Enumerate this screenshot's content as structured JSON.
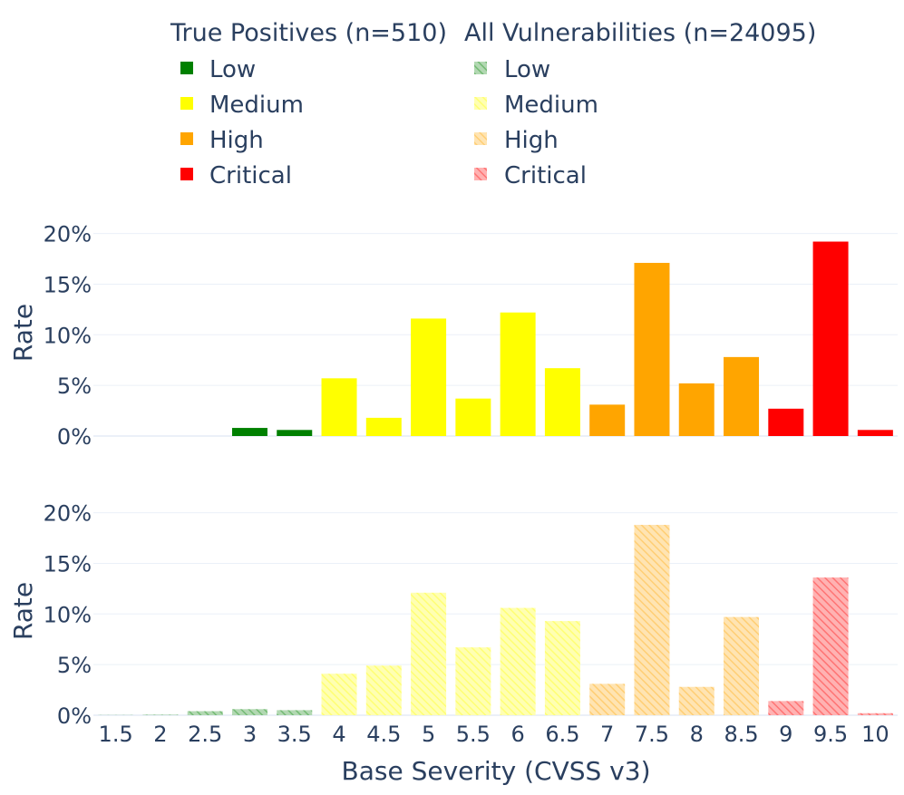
{
  "chart_data": {
    "type": "bar",
    "legend": {
      "groups": [
        {
          "title": "True Positives (n=510)",
          "items": [
            "Low",
            "Medium",
            "High",
            "Critical"
          ],
          "style": "solid"
        },
        {
          "title": "All Vulnerabilities (n=24095)",
          "items": [
            "Low",
            "Medium",
            "High",
            "Critical"
          ],
          "style": "hatched"
        }
      ],
      "placement": "top"
    },
    "colors": {
      "Low": "#008000",
      "Medium": "#ffff00",
      "High": "#ffa500",
      "Critical": "#ff0000"
    },
    "xlabel": "Base Severity (CVSS v3)",
    "x_ticks": [
      "1.5",
      "2",
      "2.5",
      "3",
      "3.5",
      "4",
      "4.5",
      "5",
      "5.5",
      "6",
      "6.5",
      "7",
      "7.5",
      "8",
      "8.5",
      "9",
      "9.5",
      "10"
    ],
    "y_ticks": [
      "0%",
      "5%",
      "10%",
      "15%",
      "20%"
    ],
    "panels": [
      {
        "name": "True Positives (n=510)",
        "ylabel": "Rate",
        "ylim": [
          0,
          20.5
        ],
        "style": "solid",
        "x": [
          1.5,
          2,
          2.5,
          3,
          3.5,
          4,
          4.5,
          5,
          5.5,
          6,
          6.5,
          7,
          7.5,
          8,
          8.5,
          9,
          9.5,
          10
        ],
        "values": [
          0,
          0,
          0,
          0.8,
          0.6,
          5.7,
          1.8,
          11.6,
          3.7,
          12.2,
          6.7,
          3.1,
          17.1,
          5.2,
          7.8,
          2.7,
          19.2,
          0.6
        ],
        "severity": [
          "Low",
          "Low",
          "Low",
          "Low",
          "Low",
          "Medium",
          "Medium",
          "Medium",
          "Medium",
          "Medium",
          "Medium",
          "High",
          "High",
          "High",
          "High",
          "Critical",
          "Critical",
          "Critical"
        ]
      },
      {
        "name": "All Vulnerabilities (n=24095)",
        "ylabel": "Rate",
        "ylim": [
          0,
          20.5
        ],
        "style": "hatched",
        "x": [
          1.5,
          2,
          2.5,
          3,
          3.5,
          4,
          4.5,
          5,
          5.5,
          6,
          6.5,
          7,
          7.5,
          8,
          8.5,
          9,
          9.5,
          10
        ],
        "values": [
          0.02,
          0.05,
          0.4,
          0.6,
          0.5,
          4.1,
          4.9,
          12.1,
          6.7,
          10.6,
          9.3,
          3.1,
          18.8,
          2.8,
          9.7,
          1.4,
          13.6,
          0.2
        ],
        "severity": [
          "Low",
          "Low",
          "Low",
          "Low",
          "Low",
          "Medium",
          "Medium",
          "Medium",
          "Medium",
          "Medium",
          "Medium",
          "High",
          "High",
          "High",
          "High",
          "Critical",
          "Critical",
          "Critical"
        ]
      }
    ]
  }
}
